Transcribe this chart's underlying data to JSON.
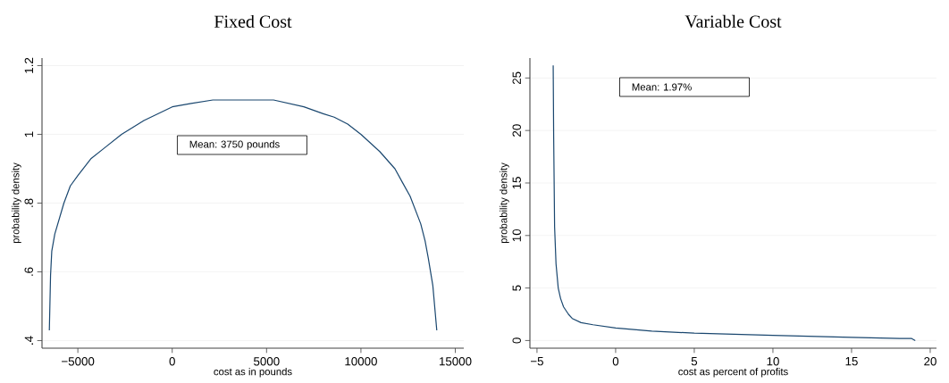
{
  "chart_data": [
    {
      "type": "line",
      "title": "Fixed Cost",
      "xlabel": "cost as in pounds",
      "ylabel": "probability density",
      "color": "#1a476f",
      "grid": "y",
      "x": [
        -6511,
        -6447,
        -6383,
        -6222,
        -5740,
        -5400,
        -5000,
        -4293,
        -3600,
        -2685,
        -1500,
        0,
        1000,
        2154,
        3762,
        5370,
        6977,
        8000,
        8585,
        9300,
        10000,
        10997,
        11801,
        12200,
        12605,
        13167,
        13400,
        13569,
        13810,
        14019
      ],
      "values": [
        0.43,
        0.59,
        0.66,
        0.71,
        0.8,
        0.85,
        0.88,
        0.93,
        0.96,
        1.0,
        1.04,
        1.08,
        1.09,
        1.1,
        1.1,
        1.1,
        1.08,
        1.06,
        1.05,
        1.03,
        1.0,
        0.95,
        0.9,
        0.86,
        0.82,
        0.74,
        0.69,
        0.64,
        0.56,
        0.43
      ],
      "xlim": [
        -6900,
        15450
      ],
      "ylim": [
        0.378,
        1.222
      ],
      "xticks": [
        {
          "value": -5000,
          "label": "−5000"
        },
        0,
        5000,
        10000,
        15000
      ],
      "yticks": [
        {
          "value": 0.4,
          "label": ".4"
        },
        {
          "value": 0.6,
          "label": ".6"
        },
        {
          "value": 0.8,
          "label": ".8"
        },
        1,
        1.2
      ],
      "annotations": [
        "Mean: 3750 pounds"
      ]
    },
    {
      "type": "line",
      "title": "Variable Cost",
      "xlabel": "cost as percent of profits",
      "ylabel": "probability density",
      "color": "#1a476f",
      "grid": "y",
      "x": [
        -3.97,
        -3.94,
        -3.88,
        -3.79,
        -3.65,
        -3.5,
        -3.31,
        -3.0,
        -2.76,
        -2.2,
        -1.44,
        0,
        2.3,
        5,
        10,
        15,
        18.06,
        18.8,
        19.05
      ],
      "values": [
        26.2,
        19.5,
        10.8,
        7.3,
        5.0,
        4.0,
        3.2,
        2.5,
        2.1,
        1.7,
        1.5,
        1.2,
        0.9,
        0.7,
        0.5,
        0.3,
        0.2,
        0.2,
        0
      ],
      "xlim": [
        -5.45,
        20.4
      ],
      "ylim": [
        -0.73,
        26.9
      ],
      "xticks": [
        {
          "value": -5,
          "label": "−5"
        },
        0,
        5,
        10,
        15,
        20
      ],
      "yticks": [
        0,
        5,
        10,
        15,
        20,
        25
      ],
      "annotations": [
        "Mean: 1.97%"
      ]
    }
  ]
}
